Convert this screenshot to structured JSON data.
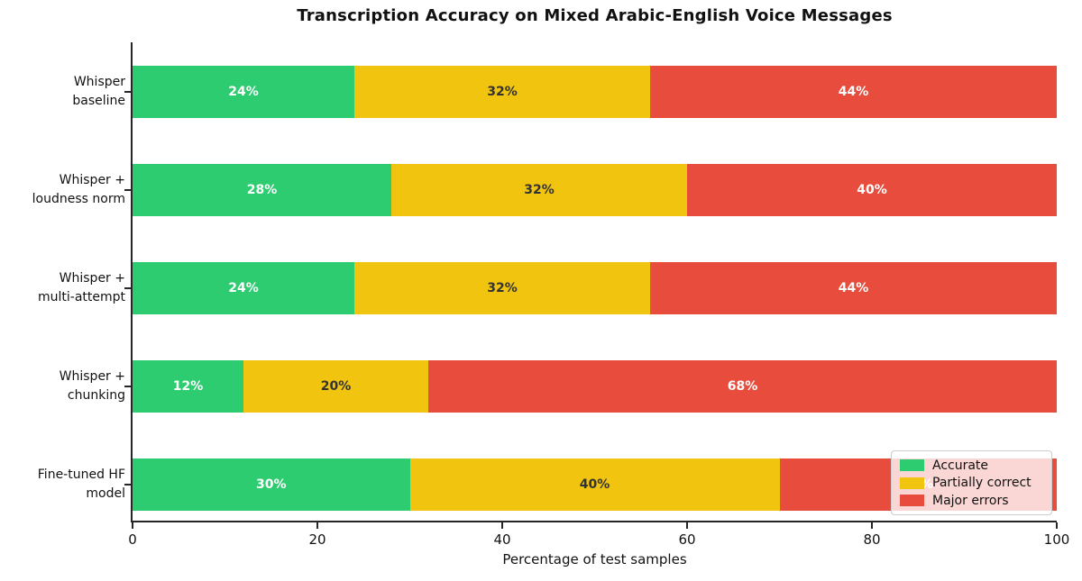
{
  "chart_data": {
    "type": "bar",
    "orientation": "horizontal-stacked",
    "title": "Transcription Accuracy on Mixed Arabic-English Voice Messages",
    "xlabel": "Percentage of test samples",
    "ylabel": "",
    "xlim": [
      0,
      100
    ],
    "x_ticks": [
      0,
      20,
      40,
      60,
      80,
      100
    ],
    "grid": false,
    "categories": [
      "Whisper\nbaseline",
      "Whisper +\nloudness norm",
      "Whisper +\nmulti-attempt",
      "Whisper +\nchunking",
      "Fine-tuned HF\nmodel"
    ],
    "series": [
      {
        "name": "Accurate",
        "color": "#2ecc71",
        "label_color": "#ffffff",
        "values": [
          24,
          28,
          24,
          12,
          30
        ]
      },
      {
        "name": "Partially correct",
        "color": "#f1c40f",
        "label_color": "#333333",
        "values": [
          32,
          32,
          32,
          20,
          40
        ]
      },
      {
        "name": "Major errors",
        "color": "#e74c3c",
        "label_color": "#ffffff",
        "values": [
          44,
          40,
          44,
          68,
          30
        ]
      }
    ],
    "bar_label_suffix": "%",
    "legend": {
      "position": "lower right",
      "entries": [
        "Accurate",
        "Partially correct",
        "Major errors"
      ]
    }
  },
  "colors": {
    "accurate": "#2ecc71",
    "partially_correct": "#f1c40f",
    "major_errors": "#e74c3c",
    "axis": "#262626",
    "text": "#111111"
  }
}
